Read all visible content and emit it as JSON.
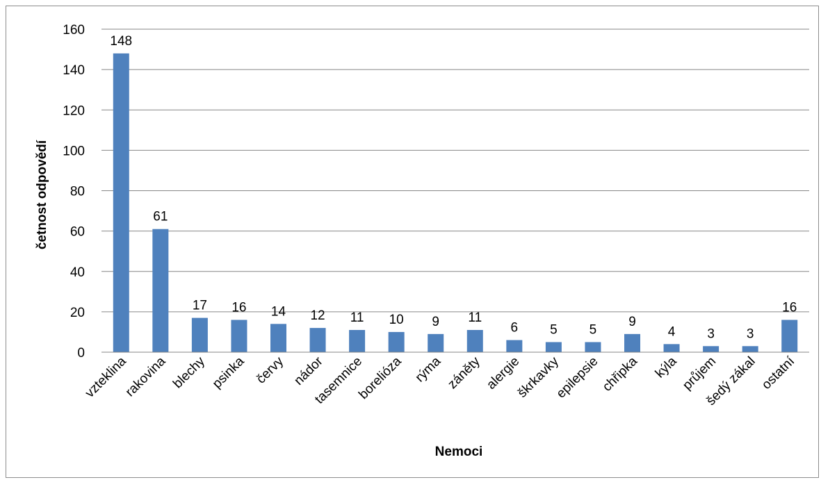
{
  "chart_data": {
    "type": "bar",
    "categories": [
      "vzteklina",
      "rakovina",
      "blechy",
      "psinka",
      "červy",
      "nádor",
      "tasemnice",
      "borelióza",
      "rýma",
      "záněty",
      "alergie",
      "škrkavky",
      "epilepsie",
      "chřipka",
      "kýla",
      "průjem",
      "šedý zákal",
      "ostatní"
    ],
    "values": [
      148,
      61,
      17,
      16,
      14,
      12,
      11,
      10,
      9,
      11,
      6,
      5,
      5,
      9,
      4,
      3,
      3,
      16
    ],
    "title": "",
    "xlabel": "Nemoci",
    "ylabel": "četnost odpovědí",
    "ylim": [
      0,
      160
    ],
    "yticks": [
      0,
      20,
      40,
      60,
      80,
      100,
      120,
      140,
      160
    ],
    "grid": true,
    "legend": "none",
    "bar_color": "#4f81bd",
    "gridline_color": "#868686"
  }
}
